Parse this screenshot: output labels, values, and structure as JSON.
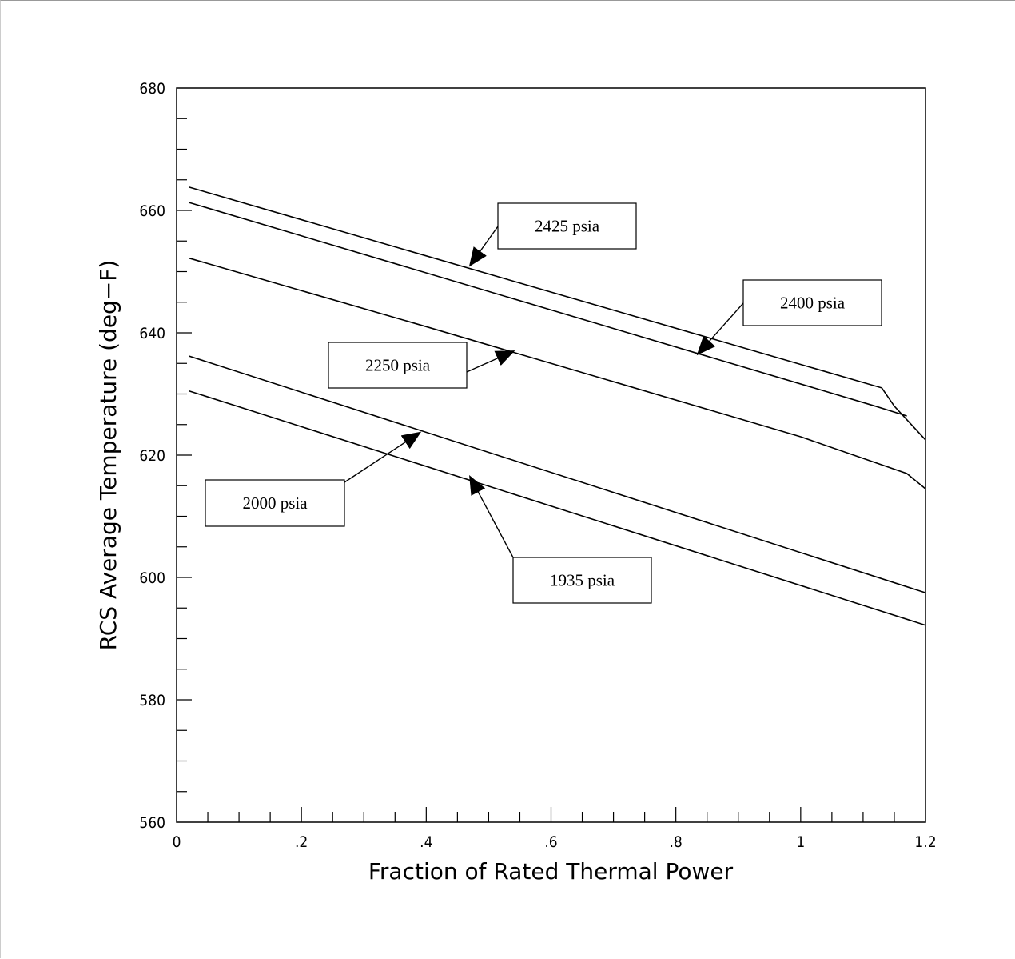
{
  "chart_data": {
    "type": "line",
    "xlabel": "Fraction of Rated Thermal Power",
    "ylabel": "RCS Average Temperature (deg−F)",
    "xlim": [
      0,
      1.2
    ],
    "ylim": [
      560,
      680
    ],
    "x_major_ticks": [
      0,
      0.2,
      0.4,
      0.6,
      0.8,
      1.0,
      1.2
    ],
    "x_tick_labels": [
      "0",
      ".2",
      ".4",
      ".6",
      ".8",
      "1",
      "1.2"
    ],
    "x_minor_step": 0.05,
    "y_major_ticks": [
      560,
      580,
      600,
      620,
      640,
      660,
      680
    ],
    "y_tick_labels": [
      "560",
      "580",
      "600",
      "620",
      "640",
      "660",
      "680"
    ],
    "y_minor_step": 5,
    "grid": false,
    "series": [
      {
        "name": "2425 psia",
        "x": [
          0.02,
          1.13,
          1.15,
          1.2
        ],
        "y": [
          663.8,
          631.0,
          628.0,
          622.5
        ]
      },
      {
        "name": "2400 psia",
        "x": [
          0.02,
          1.12,
          1.17
        ],
        "y": [
          661.3,
          628.0,
          626.4
        ]
      },
      {
        "name": "2250 psia",
        "x": [
          0.02,
          0.4,
          1.0,
          1.17,
          1.2
        ],
        "y": [
          652.2,
          641.0,
          623.0,
          617.0,
          614.5
        ]
      },
      {
        "name": "2000 psia",
        "x": [
          0.02,
          1.2
        ],
        "y": [
          636.2,
          597.5
        ]
      },
      {
        "name": "1935 psia",
        "x": [
          0.02,
          1.2
        ],
        "y": [
          630.5,
          592.2
        ]
      }
    ],
    "annotations": [
      {
        "label": "2425 psia",
        "target": [
          0.47,
          651.0
        ]
      },
      {
        "label": "2400 psia",
        "target": [
          0.835,
          636.5
        ]
      },
      {
        "label": "2250 psia",
        "target": [
          0.54,
          637.0
        ]
      },
      {
        "label": "2000 psia",
        "target": [
          0.39,
          623.7
        ]
      },
      {
        "label": "1935 psia",
        "target": [
          0.47,
          616.5
        ]
      }
    ]
  }
}
